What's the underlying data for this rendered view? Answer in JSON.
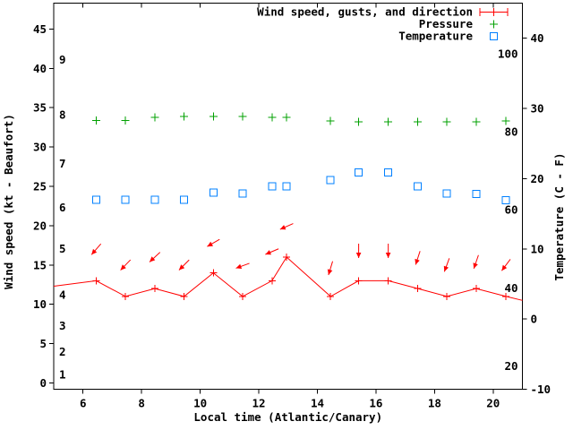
{
  "figure": {
    "background": "#ffffff",
    "axis_color": "#000000",
    "colors": {
      "wind": "#ff0000",
      "pressure": "#00a000",
      "temperature": "#0080ff"
    }
  },
  "chart_data": {
    "type": "line",
    "title": "",
    "xlabel": "Local time (Atlantic/Canary)",
    "grid": false,
    "legend_position": "top-right-inside",
    "legend": [
      {
        "label": "Wind speed, gusts, and direction",
        "marker": "errorbar-plus",
        "color": "#ff0000"
      },
      {
        "label": "Pressure",
        "marker": "plus",
        "color": "#00a000"
      },
      {
        "label": "Temperature",
        "marker": "open-square",
        "color": "#0080ff"
      }
    ],
    "x_axis": {
      "range": [
        5,
        21
      ],
      "ticks": [
        "6",
        "8",
        "10",
        "12",
        "14",
        "16",
        "18",
        "20"
      ],
      "tick_values": [
        6,
        8,
        10,
        12,
        14,
        16,
        18,
        20
      ]
    },
    "y_left": {
      "label": "Wind speed (kt - Beaufort)",
      "range": [
        -0.8,
        48.3
      ],
      "ticks": [
        "0",
        "5",
        "10",
        "15",
        "20",
        "25",
        "30",
        "35",
        "40",
        "45"
      ],
      "tick_values": [
        0,
        5,
        10,
        15,
        20,
        25,
        30,
        35,
        40,
        45
      ],
      "inner_scale": {
        "name": "Beaufort",
        "labels": [
          "1",
          "2",
          "3",
          "4",
          "5",
          "6",
          "7",
          "8",
          "9"
        ],
        "positions_kt": [
          1.1,
          4.0,
          7.3,
          11.2,
          17.1,
          22.3,
          27.9,
          34.1,
          41.1
        ]
      }
    },
    "y_right": {
      "label": "Temperature (C - F)",
      "range": [
        -10,
        45
      ],
      "ticks": [
        "-10",
        "0",
        "10",
        "20",
        "30",
        "40"
      ],
      "tick_values": [
        -10,
        0,
        10,
        20,
        30,
        40
      ],
      "inner_scale": {
        "name": "Fahrenheit",
        "labels": [
          "20",
          "40",
          "60",
          "80",
          "100"
        ],
        "positions_c": [
          -6.67,
          4.44,
          15.56,
          26.67,
          37.78
        ]
      }
    },
    "x": [
      6.45,
      7.45,
      8.45,
      9.45,
      10.45,
      11.45,
      12.45,
      12.95,
      14.45,
      15.41,
      16.42,
      17.43,
      18.42,
      19.42,
      20.44
    ],
    "series": [
      {
        "name": "wind_speed_kt",
        "axis": "left",
        "values": [
          13,
          11,
          12,
          11,
          14,
          11,
          13,
          16,
          11,
          13,
          13,
          12,
          11,
          12,
          11
        ],
        "edge_left": {
          "x": 5.0,
          "y": 12.3
        },
        "edge_right": {
          "x": 21.0,
          "y": 10.5
        }
      },
      {
        "name": "wind_gust_kt_arrow_height",
        "axis": "left",
        "values": [
          17,
          15,
          16,
          15,
          17.8,
          14.9,
          16.7,
          19.9,
          14.6,
          16.8,
          16.8,
          15.9,
          15,
          15.4,
          15
        ]
      },
      {
        "name": "wind_direction_deg_downwind",
        "axis": "none",
        "values": [
          221,
          224,
          227,
          225,
          240,
          250,
          247,
          246,
          197,
          180,
          180,
          198,
          200,
          199,
          217
        ]
      },
      {
        "name": "pressure_plotted_left_axis_units",
        "axis": "unlabeled",
        "values": [
          33.4,
          33.4,
          33.8,
          33.9,
          33.9,
          33.9,
          33.8,
          33.8,
          33.3,
          33.2,
          33.2,
          33.2,
          33.2,
          33.2,
          33.3
        ]
      },
      {
        "name": "temperature_c",
        "axis": "right",
        "values": [
          17.0,
          17.0,
          17.0,
          17.0,
          18.0,
          17.9,
          18.9,
          18.9,
          19.8,
          20.9,
          20.9,
          18.9,
          17.9,
          17.8,
          16.9
        ]
      }
    ]
  }
}
